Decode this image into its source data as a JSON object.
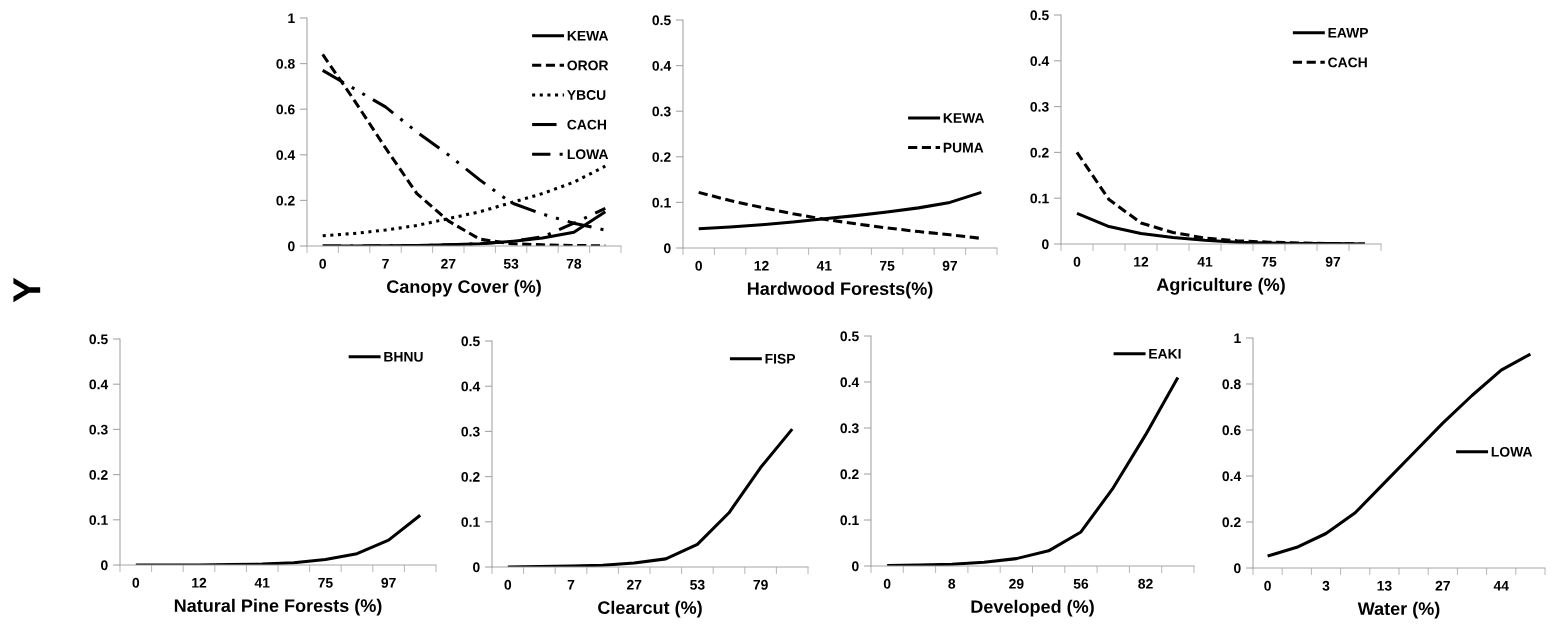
{
  "chart_data": [
    {
      "type": "line",
      "xlabel": "Canopy Cover (%)",
      "ylabel": "Y",
      "categories": [
        "0",
        null,
        "7",
        null,
        "27",
        null,
        "53",
        null,
        "78",
        null
      ],
      "ylim": [
        0,
        1
      ],
      "yticks": [
        0,
        0.2,
        0.4,
        0.6,
        0.8,
        1
      ],
      "legend": "top right",
      "grid": false,
      "series": [
        {
          "name": "KEWA",
          "color": "#000000",
          "line_style": "solid",
          "values": [
            0,
            0,
            0.001,
            0.002,
            0.005,
            0.01,
            0.02,
            0.035,
            0.06,
            0.15
          ]
        },
        {
          "name": "OROR",
          "color": "#000000",
          "line_style": "dashed",
          "values": [
            0.84,
            0.64,
            0.43,
            0.23,
            0.11,
            0.03,
            0.01,
            0.005,
            0.002,
            0.001
          ]
        },
        {
          "name": "YBCU",
          "color": "#000000",
          "line_style": "dotted",
          "values": [
            0.045,
            0.055,
            0.07,
            0.09,
            0.12,
            0.15,
            0.19,
            0.23,
            0.28,
            0.35
          ]
        },
        {
          "name": "CACH",
          "color": "#000000",
          "line_style": "dashdotdot",
          "values": [
            0.77,
            0.69,
            0.61,
            0.5,
            0.4,
            0.29,
            0.19,
            0.14,
            0.1,
            0.07
          ]
        },
        {
          "name": "LOWA",
          "color": "#000000",
          "line_style": "longdashdot",
          "values": [
            0,
            0,
            0.001,
            0.002,
            0.005,
            0.01,
            0.02,
            0.04,
            0.1,
            0.165
          ]
        }
      ]
    },
    {
      "type": "line",
      "xlabel": "Hardwood Forests(%)",
      "categories": [
        "0",
        null,
        "12",
        null,
        "41",
        null,
        "75",
        null,
        "97",
        null
      ],
      "ylim": [
        0,
        0.5
      ],
      "yticks": [
        0,
        0.1,
        0.2,
        0.3,
        0.4,
        0.5
      ],
      "legend": "right",
      "grid": false,
      "series": [
        {
          "name": "KEWA",
          "color": "#000000",
          "line_style": "solid",
          "values": [
            0.042,
            0.046,
            0.051,
            0.057,
            0.064,
            0.071,
            0.079,
            0.088,
            0.1,
            0.122
          ]
        },
        {
          "name": "PUMA",
          "color": "#000000",
          "line_style": "dashed",
          "values": [
            0.122,
            0.104,
            0.089,
            0.075,
            0.063,
            0.053,
            0.044,
            0.036,
            0.029,
            0.021
          ]
        }
      ]
    },
    {
      "type": "line",
      "xlabel": "Agriculture (%)",
      "categories": [
        "0",
        null,
        "12",
        null,
        "41",
        null,
        "75",
        null,
        "97",
        null
      ],
      "ylim": [
        0,
        0.5
      ],
      "yticks": [
        0,
        0.1,
        0.2,
        0.3,
        0.4,
        0.5
      ],
      "legend": "top right",
      "grid": false,
      "series": [
        {
          "name": "EAWP",
          "color": "#000000",
          "line_style": "solid",
          "values": [
            0.067,
            0.038,
            0.023,
            0.014,
            0.008,
            0.004,
            0.002,
            0.001,
            0.001,
            0
          ]
        },
        {
          "name": "CACH",
          "color": "#000000",
          "line_style": "dashed",
          "values": [
            0.2,
            0.097,
            0.046,
            0.025,
            0.013,
            0.007,
            0.004,
            0.002,
            0.001,
            0
          ]
        }
      ]
    },
    {
      "type": "line",
      "xlabel": "Natural Pine Forests (%)",
      "categories": [
        "0",
        null,
        "12",
        null,
        "41",
        null,
        "75",
        null,
        "97",
        null
      ],
      "ylim": [
        0,
        0.5
      ],
      "yticks": [
        0,
        0.1,
        0.2,
        0.3,
        0.4,
        0.5
      ],
      "legend": "top right",
      "grid": false,
      "series": [
        {
          "name": "BHNU",
          "color": "#000000",
          "line_style": "solid",
          "values": [
            0,
            0,
            0,
            0.001,
            0.002,
            0.005,
            0.012,
            0.025,
            0.055,
            0.11
          ]
        }
      ]
    },
    {
      "type": "line",
      "xlabel": "Clearcut (%)",
      "categories": [
        "0",
        null,
        "7",
        null,
        "27",
        null,
        "53",
        null,
        "79",
        null
      ],
      "ylim": [
        0,
        0.5
      ],
      "yticks": [
        0,
        0.1,
        0.2,
        0.3,
        0.4,
        0.5
      ],
      "legend": "top right",
      "grid": false,
      "series": [
        {
          "name": "FISP",
          "color": "#000000",
          "line_style": "solid",
          "values": [
            0,
            0.001,
            0.002,
            0.004,
            0.009,
            0.018,
            0.05,
            0.12,
            0.22,
            0.305
          ]
        }
      ]
    },
    {
      "type": "line",
      "xlabel": "Developed (%)",
      "categories": [
        "0",
        null,
        "8",
        null,
        "29",
        null,
        "56",
        null,
        "82",
        null
      ],
      "ylim": [
        0,
        0.5
      ],
      "yticks": [
        0,
        0.1,
        0.2,
        0.3,
        0.4,
        0.5
      ],
      "legend": "top right",
      "grid": false,
      "series": [
        {
          "name": "EAKI",
          "color": "#000000",
          "line_style": "solid",
          "values": [
            0.001,
            0.002,
            0.004,
            0.008,
            0.016,
            0.033,
            0.074,
            0.17,
            0.285,
            0.41
          ]
        }
      ]
    },
    {
      "type": "line",
      "xlabel": "Water (%)",
      "categories": [
        "0",
        null,
        "3",
        null,
        "13",
        null,
        "27",
        null,
        "44",
        null
      ],
      "ylim": [
        0,
        1
      ],
      "yticks": [
        0,
        0.2,
        0.4,
        0.6,
        0.8,
        1
      ],
      "legend": "right",
      "grid": false,
      "series": [
        {
          "name": "LOWA",
          "color": "#000000",
          "line_style": "solid",
          "values": [
            0.052,
            0.09,
            0.15,
            0.24,
            0.37,
            0.5,
            0.63,
            0.75,
            0.86,
            0.93
          ]
        }
      ]
    }
  ]
}
